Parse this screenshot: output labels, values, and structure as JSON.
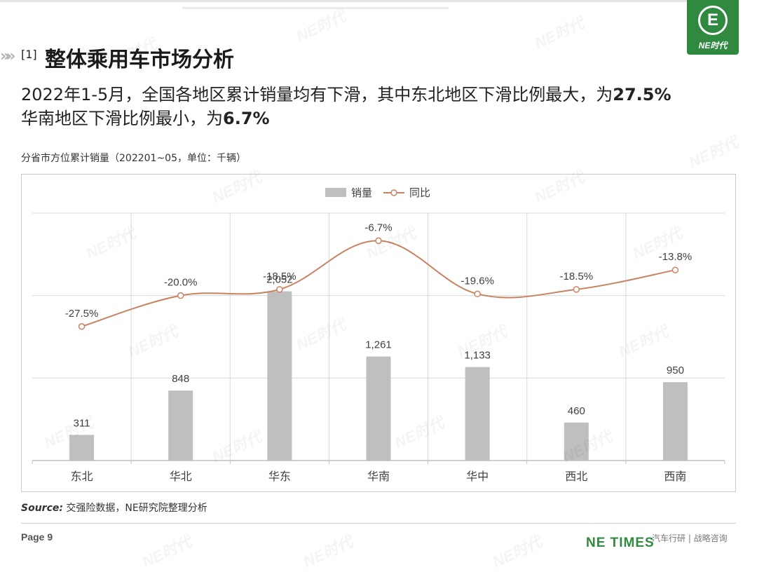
{
  "header": {
    "section_number": "[1]",
    "title": "整体乘用车市场分析",
    "logo_text": "NE时代",
    "logo_mark": "E"
  },
  "headline": {
    "line1_prefix": "2022年1-5月，全国各地区累计销量均有下滑，其中东北地区下滑比例最大，为",
    "line1_value": "27.5%",
    "line2_prefix": "华南地区下滑比例最小，为",
    "line2_value": "6.7%"
  },
  "chart_caption": "分省市方位累计销量（202201~05，单位：千辆）",
  "chart_data": {
    "type": "bar",
    "categories": [
      "东北",
      "华北",
      "华东",
      "华南",
      "华中",
      "西北",
      "西南"
    ],
    "series": [
      {
        "name": "销量",
        "type": "bar",
        "values": [
          311,
          848,
          2052,
          1261,
          1133,
          460,
          950
        ],
        "labels": [
          "311",
          "848",
          "2,052",
          "1,261",
          "1,133",
          "460",
          "950"
        ]
      },
      {
        "name": "同比",
        "type": "line",
        "values": [
          -27.5,
          -20.0,
          -18.5,
          -6.7,
          -19.6,
          -18.5,
          -13.8
        ],
        "labels": [
          "-27.5%",
          "-20.0%",
          "-18.5%",
          "-6.7%",
          "-19.6%",
          "-18.5%",
          "-13.8%"
        ]
      }
    ],
    "y_bar_range": [
      0,
      3000
    ],
    "y_line_range": [
      -60,
      0
    ],
    "legend_position": "top-center",
    "grid": true,
    "colors": {
      "bar": "#bfbfbf",
      "line": "#c9825f",
      "grid": "#d9d9d9"
    }
  },
  "source": {
    "label": "Source:",
    "text": " 交强险数据，NE研究院整理分析"
  },
  "footer": {
    "page": "Page 9",
    "brand": "NE TIMES",
    "tagline": "汽车行研 | 战略咨询"
  },
  "watermark": "NE时代"
}
